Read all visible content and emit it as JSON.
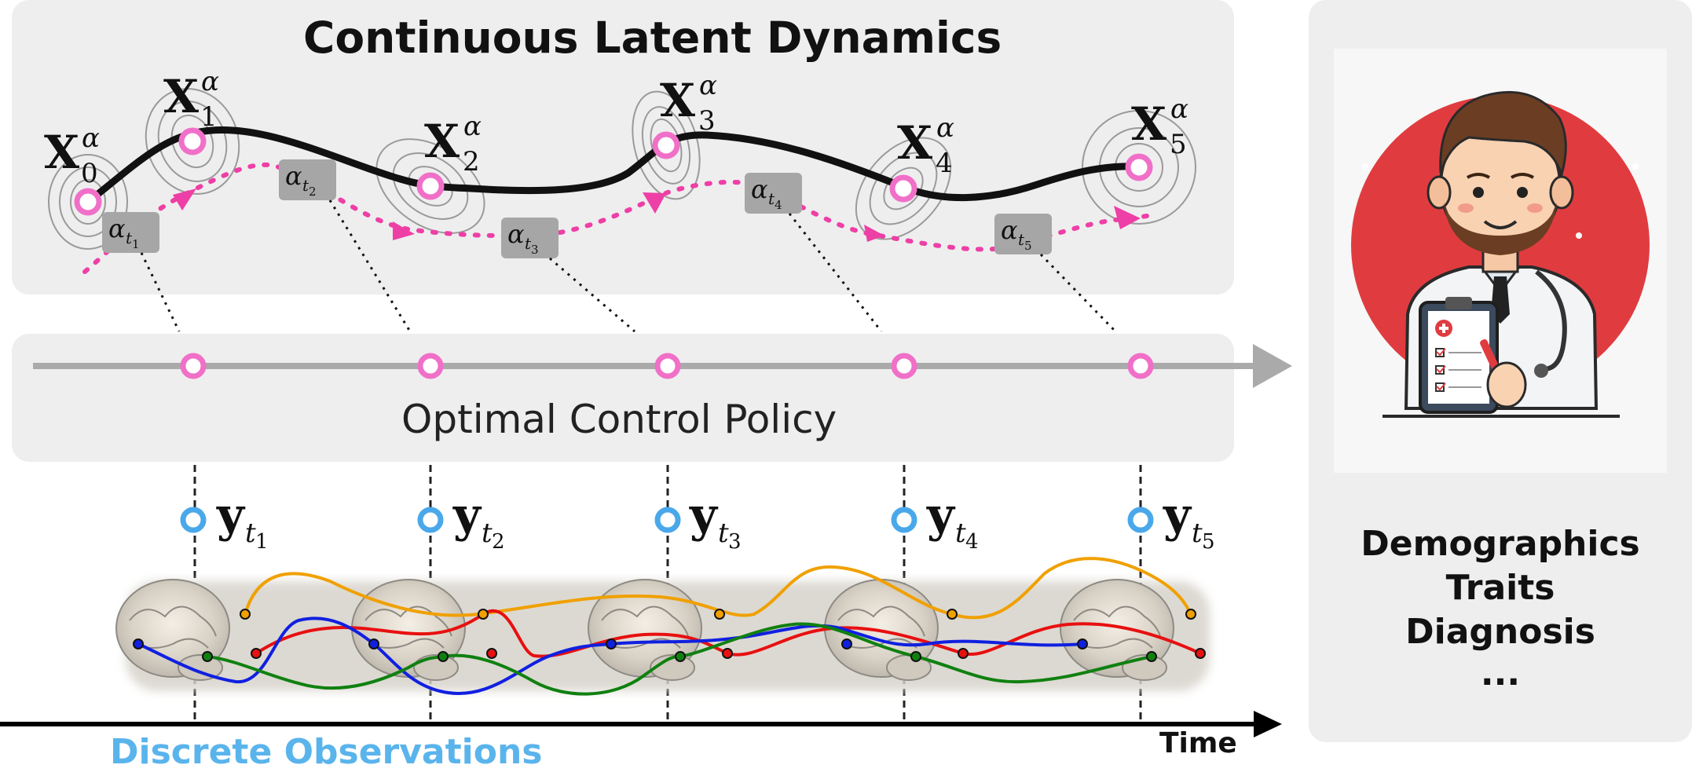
{
  "panels": {
    "latent_title": "Continuous Latent Dynamics",
    "policy_title": "Optimal Control Policy",
    "observations_label": "Discrete Observations",
    "time_label": "Time"
  },
  "latent_states": [
    {
      "label": "X",
      "sub": "0",
      "sup": "α"
    },
    {
      "label": "X",
      "sub": "1",
      "sup": "α"
    },
    {
      "label": "X",
      "sub": "2",
      "sup": "α"
    },
    {
      "label": "X",
      "sub": "3",
      "sup": "α"
    },
    {
      "label": "X",
      "sub": "4",
      "sup": "α"
    },
    {
      "label": "X",
      "sub": "5",
      "sup": "α"
    }
  ],
  "controls": [
    {
      "label": "α",
      "sub": "t",
      "subsub": "1"
    },
    {
      "label": "α",
      "sub": "t",
      "subsub": "2"
    },
    {
      "label": "α",
      "sub": "t",
      "subsub": "3"
    },
    {
      "label": "α",
      "sub": "t",
      "subsub": "4"
    },
    {
      "label": "α",
      "sub": "t",
      "subsub": "5"
    }
  ],
  "observations": [
    {
      "label": "y",
      "sub": "t",
      "subsub": "1"
    },
    {
      "label": "y",
      "sub": "t",
      "subsub": "2"
    },
    {
      "label": "y",
      "sub": "t",
      "subsub": "3"
    },
    {
      "label": "y",
      "sub": "t",
      "subsub": "4"
    },
    {
      "label": "y",
      "sub": "t",
      "subsub": "5"
    }
  ],
  "outcomes": {
    "items": [
      "Demographics",
      "Traits",
      "Diagnosis",
      "..."
    ]
  },
  "colors": {
    "panel_bg": "#eeeeee",
    "latent_path": "#111111",
    "control_path": "#ee3fa6",
    "state_marker": "#f070c8",
    "observation_marker": "#4aa8ea",
    "axis": "#aaaaaa",
    "observations_text": "#5ab4ec",
    "doctor_circle": "#e03c40",
    "signal_orange": "#f0a000",
    "signal_red": "#e81010",
    "signal_blue": "#1020e0",
    "signal_green": "#108010"
  },
  "icons": {
    "doctor": "doctor-with-clipboard-icon",
    "brain": "brain-icon"
  }
}
